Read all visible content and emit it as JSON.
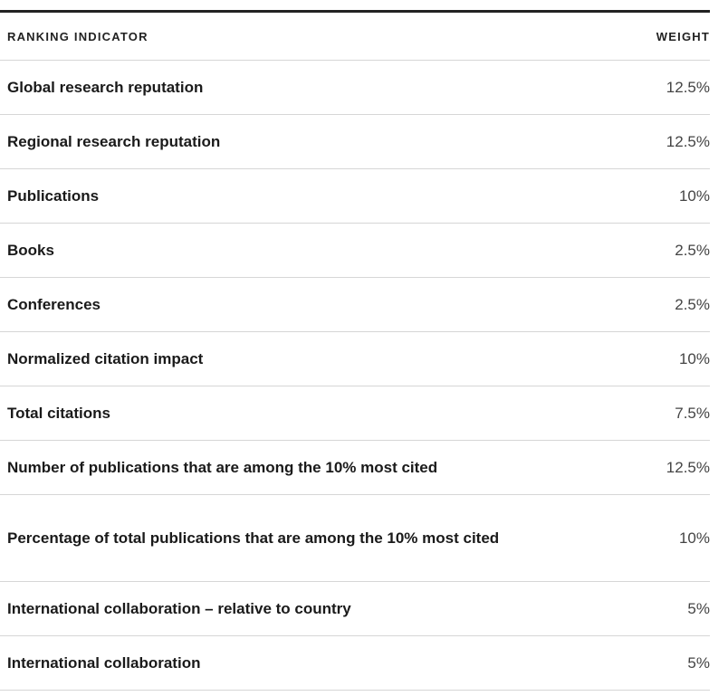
{
  "table": {
    "header": [
      "RANKING INDICATOR",
      "WEIGHT"
    ],
    "rows": [
      [
        "Global research reputation",
        "12.5%"
      ],
      [
        "Regional research reputation",
        "12.5%"
      ],
      [
        "Publications",
        "10%"
      ],
      [
        "Books",
        "2.5%"
      ],
      [
        "Conferences",
        "2.5%"
      ],
      [
        "Normalized citation impact",
        "10%"
      ],
      [
        "Total citations",
        "7.5%"
      ],
      [
        "Number of publications that are among the 10% most cited",
        "12.5%"
      ],
      [
        "Percentage of total publications that are among the 10% most cited",
        "10%"
      ],
      [
        "International collaboration – relative to country",
        "5%"
      ],
      [
        "International collaboration",
        "5%"
      ]
    ]
  }
}
